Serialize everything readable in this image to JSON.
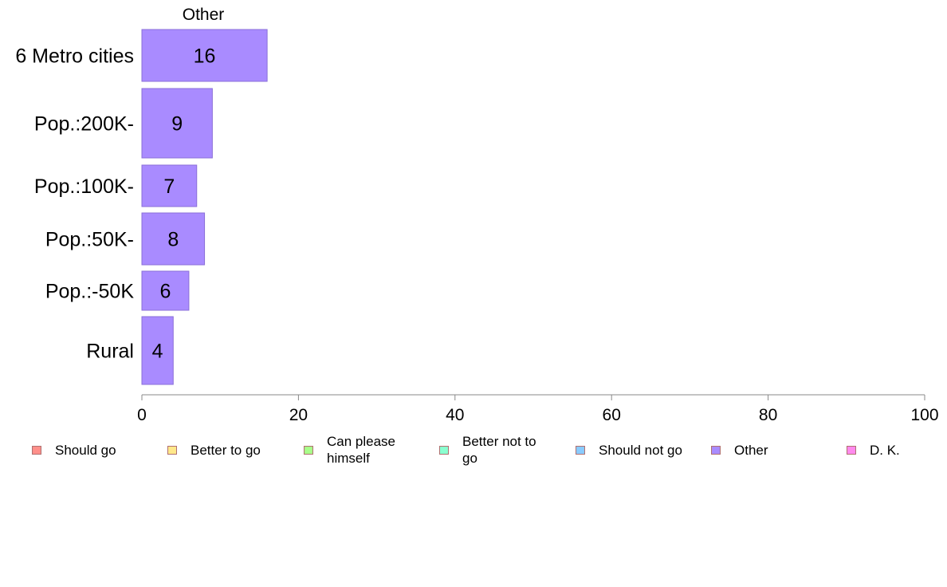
{
  "chart_data": {
    "type": "bar",
    "orientation": "horizontal",
    "panel_title": "Other",
    "categories": [
      "6 Metro cities",
      "Pop.:200K-",
      "Pop.:100K-",
      "Pop.:50K-",
      "Pop.:-50K",
      "Rural"
    ],
    "values": [
      16,
      9,
      7,
      8,
      6,
      4
    ],
    "bar_color": "#a98bff",
    "bar_stroke": "#8a6fd8",
    "xlim": [
      0,
      100
    ],
    "xticks": [
      0,
      20,
      40,
      60,
      80,
      100
    ],
    "legend": [
      {
        "label": "Should go",
        "color": "#ff8f8a"
      },
      {
        "label": "Better to go",
        "color": "#ffe88a"
      },
      {
        "label": "Can please himself",
        "color": "#a8ff8a"
      },
      {
        "label": "Better not to go",
        "color": "#8affd0"
      },
      {
        "label": "Should not go",
        "color": "#8acbff"
      },
      {
        "label": "Other",
        "color": "#a98bff"
      },
      {
        "label": "D. K.",
        "color": "#ff8aee"
      }
    ]
  }
}
